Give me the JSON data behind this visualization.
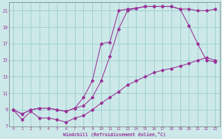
{
  "xlabel": "Windchill (Refroidissement éolien,°C)",
  "bg_color": "#cce8e8",
  "grid_color": "#99cccc",
  "line_color": "#993399",
  "xlim": [
    -0.5,
    23.5
  ],
  "ylim": [
    7,
    22
  ],
  "yticks": [
    7,
    9,
    11,
    13,
    15,
    17,
    19,
    21
  ],
  "xticks": [
    0,
    1,
    2,
    3,
    4,
    5,
    6,
    7,
    8,
    9,
    10,
    11,
    12,
    13,
    14,
    15,
    16,
    17,
    18,
    19,
    20,
    21,
    22,
    23
  ],
  "line1_x": [
    0,
    1,
    2,
    3,
    4,
    5,
    6,
    7,
    8,
    9,
    10,
    11,
    12,
    13,
    14,
    15,
    16,
    17,
    18,
    19,
    20,
    21,
    22,
    23
  ],
  "line1_y": [
    9.0,
    7.8,
    8.8,
    8.0,
    8.0,
    7.8,
    7.5,
    8.0,
    8.3,
    9.0,
    9.8,
    10.5,
    11.2,
    12.0,
    12.5,
    13.0,
    13.5,
    13.8,
    14.0,
    14.3,
    14.6,
    15.0,
    15.3,
    15.0
  ],
  "line2_x": [
    0,
    1,
    2,
    3,
    4,
    5,
    6,
    7,
    8,
    9,
    10,
    11,
    12,
    13,
    14,
    15,
    16,
    17,
    18,
    19,
    20,
    21,
    22,
    23
  ],
  "line2_y": [
    9.0,
    8.5,
    9.0,
    9.2,
    9.2,
    9.0,
    8.8,
    9.2,
    9.5,
    10.5,
    12.5,
    15.5,
    18.8,
    21.0,
    21.3,
    21.5,
    21.5,
    21.5,
    21.5,
    21.2,
    19.2,
    17.0,
    15.0,
    14.8
  ],
  "line3_x": [
    0,
    1,
    2,
    3,
    4,
    5,
    6,
    7,
    8,
    9,
    10,
    11,
    12,
    13,
    14,
    15,
    16,
    17,
    18,
    19,
    20,
    21,
    22,
    23
  ],
  "line3_y": [
    9.0,
    8.5,
    9.0,
    9.2,
    9.2,
    9.0,
    8.8,
    9.2,
    10.5,
    12.5,
    17.0,
    17.2,
    21.0,
    21.2,
    21.3,
    21.5,
    21.5,
    21.5,
    21.5,
    21.2,
    21.2,
    21.0,
    21.0,
    21.2
  ]
}
